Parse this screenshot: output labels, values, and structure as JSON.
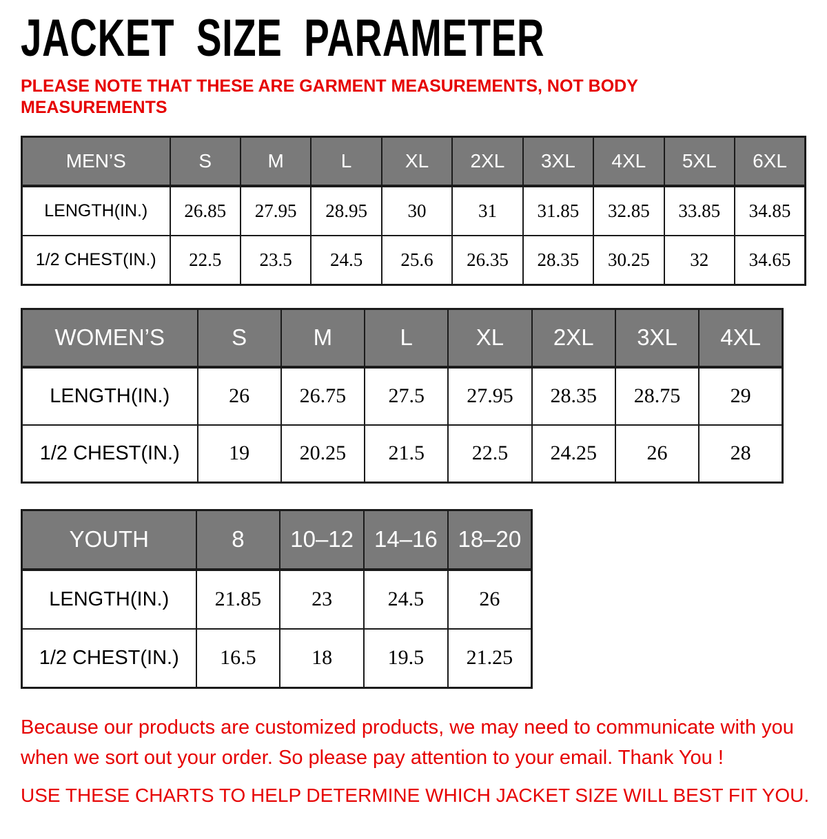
{
  "title": "JACKET SIZE PARAMETER",
  "note": "PLEASE NOTE THAT THESE ARE GARMENT MEASUREMENTS, NOT BODY MEASUREMENTS",
  "colors": {
    "accent_red": "#e60000",
    "header_gray": "#7a7a7a",
    "header_text": "#ffffff",
    "border": "#1b1b1b"
  },
  "tables": [
    {
      "id": "mens",
      "label": "MEN’S",
      "sizes": [
        "S",
        "M",
        "L",
        "XL",
        "2XL",
        "3XL",
        "4XL",
        "5XL",
        "6XL"
      ],
      "rows": [
        {
          "label": "LENGTH(IN.)",
          "values": [
            "26.85",
            "27.95",
            "28.95",
            "30",
            "31",
            "31.85",
            "32.85",
            "33.85",
            "34.85"
          ]
        },
        {
          "label": "1/2 CHEST(IN.)",
          "values": [
            "22.5",
            "23.5",
            "24.5",
            "25.6",
            "26.35",
            "28.35",
            "30.25",
            "32",
            "34.65"
          ]
        }
      ]
    },
    {
      "id": "womens",
      "label": "WOMEN’S",
      "sizes": [
        "S",
        "M",
        "L",
        "XL",
        "2XL",
        "3XL",
        "4XL"
      ],
      "rows": [
        {
          "label": "LENGTH(IN.)",
          "values": [
            "26",
            "26.75",
            "27.5",
            "27.95",
            "28.35",
            "28.75",
            "29"
          ]
        },
        {
          "label": "1/2 CHEST(IN.)",
          "values": [
            "19",
            "20.25",
            "21.5",
            "22.5",
            "24.25",
            "26",
            "28"
          ]
        }
      ]
    },
    {
      "id": "youth",
      "label": "YOUTH",
      "sizes": [
        "8",
        "10–12",
        "14–16",
        "18–20"
      ],
      "rows": [
        {
          "label": "LENGTH(IN.)",
          "values": [
            "21.85",
            "23",
            "24.5",
            "26"
          ]
        },
        {
          "label": "1/2 CHEST(IN.)",
          "values": [
            "16.5",
            "18",
            "19.5",
            "21.25"
          ]
        }
      ]
    }
  ],
  "footer": {
    "line1": "Because our products are customized products, we may need to communicate with you when we sort out your order. So please pay attention to your email. Thank You !",
    "line2": "USE THESE CHARTS TO HELP DETERMINE WHICH JACKET SIZE WILL BEST FIT YOU."
  }
}
